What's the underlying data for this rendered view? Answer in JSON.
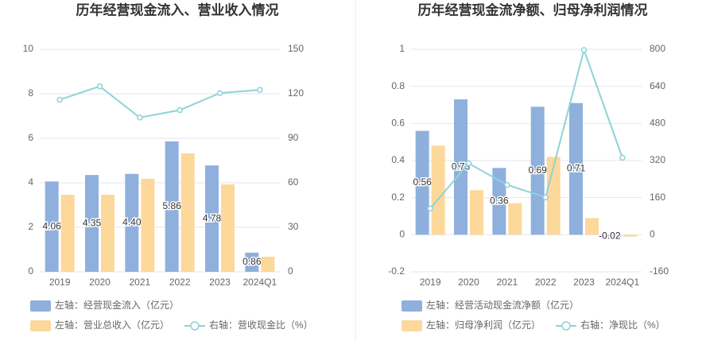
{
  "chart_data": [
    {
      "type": "bar",
      "title": "历年经营现金流入、营业收入情况",
      "categories": [
        "2019",
        "2020",
        "2021",
        "2022",
        "2023",
        "2024Q1"
      ],
      "series": [
        {
          "name": "左轴：经营现金流入（亿元）",
          "color": "#8fb0dc",
          "values": [
            4.06,
            4.35,
            4.4,
            5.86,
            4.78,
            0.86
          ],
          "value_labels": [
            "4.06",
            "4.35",
            "4.40",
            "5.86",
            "4.78",
            "0.86"
          ]
        },
        {
          "name": "左轴：营业总收入（亿元）",
          "color": "#fdd89b",
          "values": [
            3.46,
            3.46,
            4.18,
            5.32,
            3.93,
            0.68
          ]
        },
        {
          "name": "右轴：营收现金比（%）",
          "color": "#8dd3d8",
          "type": "line",
          "axis": "y2",
          "values": [
            116,
            125,
            104,
            109,
            120.5,
            122.6
          ]
        }
      ],
      "ylim": [
        0,
        10
      ],
      "yticks": [
        0,
        2,
        4,
        6,
        8,
        10
      ],
      "y2lim": [
        0,
        150
      ],
      "y2ticks": [
        0,
        30,
        60,
        90,
        120,
        150
      ],
      "grid": true
    },
    {
      "type": "bar",
      "title": "历年经营现金流净额、归母净利润情况",
      "categories": [
        "2019",
        "2020",
        "2021",
        "2022",
        "2023",
        "2024Q1"
      ],
      "series": [
        {
          "name": "左轴：经营活动现金流净额（亿元）",
          "color": "#8fb0dc",
          "values": [
            0.56,
            0.73,
            0.36,
            0.69,
            0.71,
            -0.02
          ],
          "value_labels": [
            "0.56",
            "0.73",
            "0.36",
            "0.69",
            "0.71",
            "-0.02"
          ]
        },
        {
          "name": "左轴：归母净利润（亿元）",
          "color": "#fdd89b",
          "values": [
            0.48,
            0.24,
            0.17,
            0.42,
            0.09,
            -0.01
          ]
        },
        {
          "name": "右轴：净现比（%）",
          "color": "#8dd3d8",
          "type": "line",
          "axis": "y2",
          "values": [
            113,
            308,
            215,
            161,
            797,
            332
          ]
        }
      ],
      "ylim": [
        -0.2,
        1
      ],
      "yticks": [
        -0.2,
        0,
        0.2,
        0.4,
        0.6,
        0.8,
        1
      ],
      "y2lim": [
        -160,
        800
      ],
      "y2ticks": [
        -160,
        0,
        160,
        320,
        480,
        640,
        800
      ],
      "grid": true
    }
  ]
}
